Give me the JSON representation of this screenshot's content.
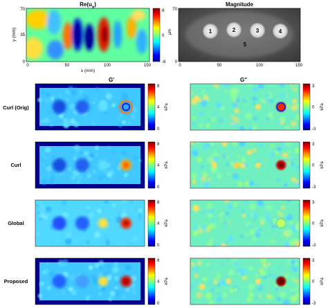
{
  "chart_data": [
    {
      "type": "heatmap",
      "title": "Re(u",
      "title_sub": "x",
      "title_close": ")",
      "xlabel": "x (mm)",
      "ylabel": "y (mm)",
      "x_ticks": [
        "0",
        "50",
        "100",
        "150"
      ],
      "y_ticks": [
        "0",
        "35",
        "70"
      ],
      "colorbar_ticks": [
        "8",
        "0",
        "-8"
      ],
      "colorbar_unit": "μm",
      "colormap": "jet"
    },
    {
      "type": "heatmap",
      "title": "Magnitude",
      "x_ticks": [
        "0",
        "50",
        "100",
        "150"
      ],
      "y_ticks": [
        "0",
        "70"
      ],
      "annotations": [
        "1",
        "2",
        "3",
        "4",
        "5"
      ],
      "colormap": "gray"
    }
  ],
  "columns": [
    "G'",
    "G''"
  ],
  "rows": [
    {
      "label": "Curl (Orig)"
    },
    {
      "label": "Curl"
    },
    {
      "label": "Global"
    },
    {
      "label": "Proposed"
    }
  ],
  "gp_colorbar": {
    "ticks": [
      "8",
      "4",
      "0"
    ],
    "unit": "kPa",
    "range": [
      0,
      8
    ]
  },
  "gpp_colorbar": {
    "ticks": [
      "3",
      "0",
      "-3"
    ],
    "unit": "kPa",
    "range": [
      -3,
      3
    ]
  },
  "colors": {
    "frame": "#00008f"
  }
}
